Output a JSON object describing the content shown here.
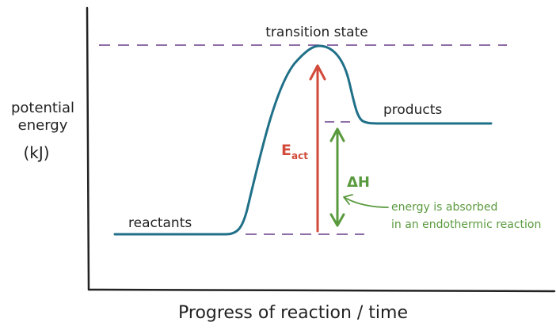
{
  "axes": {
    "y_label_line1": "potential",
    "y_label_line2": "energy",
    "y_label_unit": "(kJ)",
    "x_label": "Progress of reaction / time"
  },
  "labels": {
    "transition_state": "transition state",
    "products": "products",
    "reactants": "reactants",
    "activation_energy_main": "E",
    "activation_energy_sub": "act",
    "enthalpy_change": "ΔH",
    "annotation_line1": "energy is absorbed",
    "annotation_line2": "in an endothermic reaction"
  },
  "colors": {
    "axis": "#222222",
    "curve": "#1f7088",
    "dashed": "#6a3f8a",
    "activation_arrow": "#d24a3a",
    "enthalpy_arrow": "#5a9a3e",
    "annotation_text": "#5a9a3e",
    "label_text": "#222222"
  }
}
